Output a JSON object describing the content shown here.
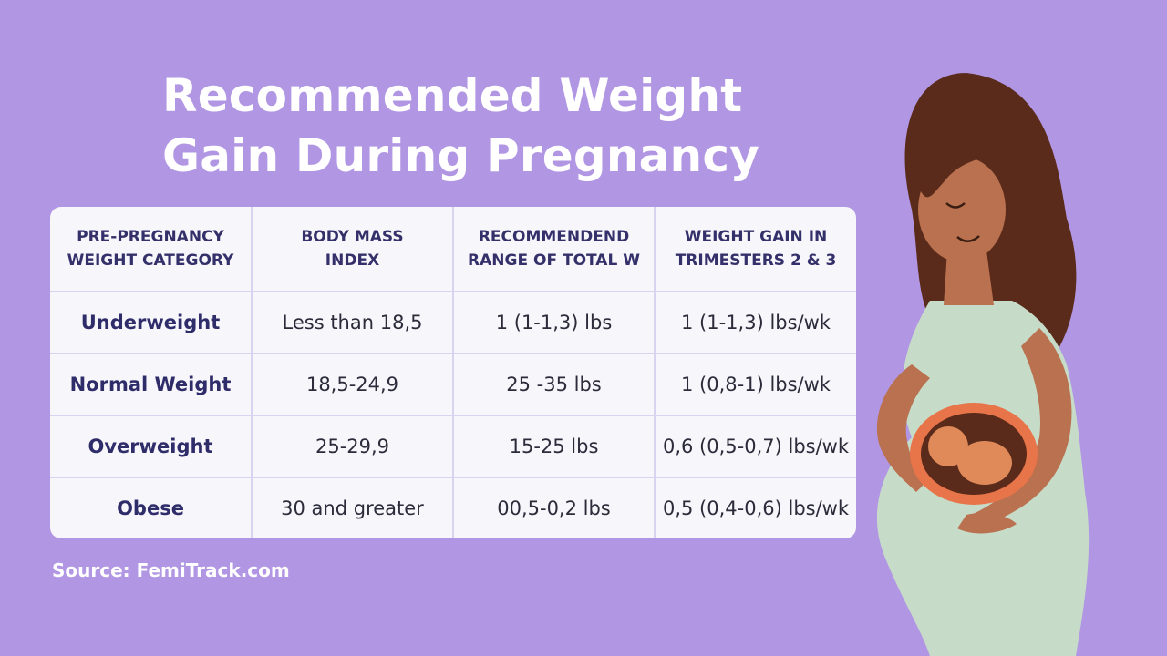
{
  "title": {
    "line1": "Recommended Weight",
    "line2": "Gain During Pregnancy"
  },
  "table": {
    "headers": [
      {
        "line1": "PRE-PREGNANCY",
        "line2": "WEIGHT CATEGORY"
      },
      {
        "line1": "BODY MASS",
        "line2": "INDEX"
      },
      {
        "line1": "RECOMMENDEND",
        "line2": "RANGE OF TOTAL W"
      },
      {
        "line1": "WEIGHT GAIN IN",
        "line2": "TRIMESTERS 2 & 3"
      }
    ],
    "rows": [
      [
        "Underweight",
        "Less than 18,5",
        "1 (1-1,3)  lbs",
        "1 (1-1,3) lbs/wk"
      ],
      [
        "Normal Weight",
        "18,5-24,9",
        "25 -35 lbs",
        "1 (0,8-1) lbs/wk"
      ],
      [
        "Overweight",
        "25-29,9",
        "15-25 lbs",
        "0,6 (0,5-0,7) lbs/wk"
      ],
      [
        "Obese",
        "30 and greater",
        "00,5-0,2  lbs",
        "0,5 (0,4-0,6) lbs/wk"
      ]
    ]
  },
  "source": "Source: FemiTrack.com",
  "colors": {
    "background": "#b197e3",
    "card": "#f7f6fb",
    "header_text": "#34306a",
    "category_text": "#2f2c6a",
    "dress": "#c7dcc8",
    "skin": "#b9714f",
    "hair": "#5a2a1a"
  }
}
